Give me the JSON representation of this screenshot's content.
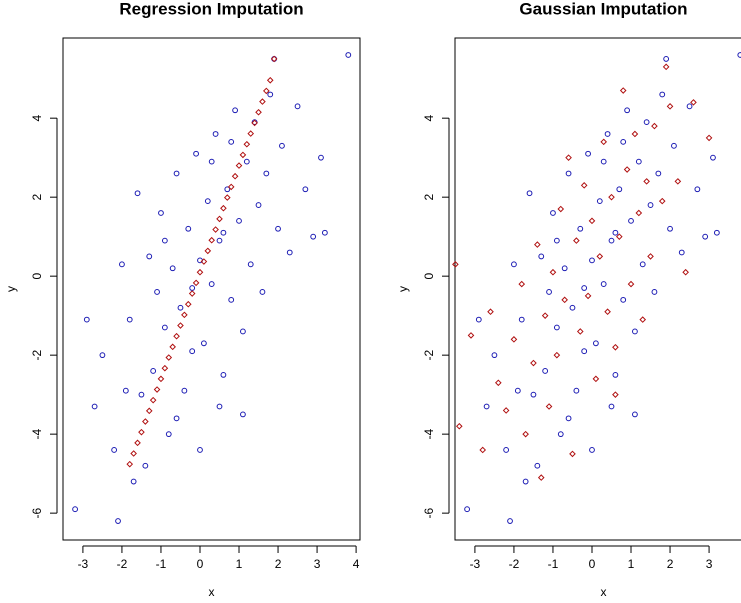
{
  "chart_data": [
    {
      "type": "scatter",
      "title": "Regression Imputation",
      "xlabel": "x",
      "ylabel": "y",
      "xlim": [
        -3.51,
        4.1
      ],
      "ylim": [
        -6.68,
        6.03
      ],
      "xticks": [
        -3,
        -2,
        -1,
        0,
        1,
        2,
        3,
        4
      ],
      "yticks": [
        -6,
        -4,
        -2,
        0,
        2,
        4
      ],
      "series": [
        {
          "color": "#1c1cb4",
          "marker": "circle",
          "x": [
            -3.2,
            -2.1,
            3.8,
            1.9,
            3.1,
            3.2,
            -2.9,
            -2.7,
            -2.5,
            -2.2,
            -1.8,
            -1.6,
            -1.5,
            -1.3,
            -1.2,
            -1.0,
            -0.9,
            -0.8,
            -0.7,
            -0.6,
            -0.5,
            -0.4,
            -0.3,
            -0.2,
            -0.1,
            0.0,
            0.1,
            0.2,
            0.3,
            0.4,
            0.5,
            0.6,
            0.7,
            0.8,
            0.9,
            1.0,
            1.1,
            1.2,
            1.3,
            1.4,
            1.5,
            1.6,
            1.7,
            1.8,
            2.0,
            2.1,
            2.3,
            2.5,
            2.7,
            -2.0,
            -1.9,
            -1.4,
            -1.1,
            -0.6,
            0.0,
            0.3,
            -0.2,
            0.6,
            -0.9,
            1.1,
            0.5,
            -1.7,
            2.9,
            0.8
          ],
          "y": [
            -5.9,
            -6.2,
            5.6,
            5.5,
            3.0,
            1.1,
            -1.1,
            -3.3,
            -2.0,
            -4.4,
            -1.1,
            2.1,
            -3.0,
            0.5,
            -2.4,
            1.6,
            -1.3,
            -4.0,
            0.2,
            2.6,
            -0.8,
            -2.9,
            1.2,
            -0.3,
            3.1,
            0.4,
            -1.7,
            1.9,
            -0.2,
            3.6,
            0.9,
            -2.5,
            2.2,
            -0.6,
            4.2,
            1.4,
            -1.4,
            2.9,
            0.3,
            3.9,
            1.8,
            -0.4,
            2.6,
            4.6,
            1.2,
            3.3,
            0.6,
            4.3,
            2.2,
            0.3,
            -2.9,
            -4.8,
            -0.4,
            -3.6,
            -4.4,
            2.9,
            -1.9,
            1.1,
            0.9,
            -3.5,
            -3.3,
            -5.2,
            1.0,
            3.4
          ]
        },
        {
          "color": "#b01010",
          "marker": "diamond",
          "x": [
            -1.8,
            -1.7,
            -1.6,
            -1.5,
            -1.4,
            -1.3,
            -1.2,
            -1.1,
            -1.0,
            -0.9,
            -0.8,
            -0.7,
            -0.6,
            -0.5,
            -0.4,
            -0.3,
            -0.2,
            -0.1,
            0.0,
            0.1,
            0.2,
            0.3,
            0.4,
            0.5,
            0.6,
            0.7,
            0.8,
            0.9,
            1.0,
            1.1,
            1.2,
            1.3,
            1.4,
            1.5,
            1.6,
            1.7,
            1.8,
            1.9
          ],
          "y": [
            -4.76,
            -4.49,
            -4.22,
            -3.95,
            -3.68,
            -3.41,
            -3.14,
            -2.87,
            -2.6,
            -2.33,
            -2.06,
            -1.79,
            -1.52,
            -1.25,
            -0.98,
            -0.71,
            -0.44,
            -0.17,
            0.1,
            0.37,
            0.64,
            0.91,
            1.18,
            1.45,
            1.72,
            1.99,
            2.26,
            2.53,
            2.8,
            3.07,
            3.34,
            3.61,
            3.88,
            4.15,
            4.42,
            4.69,
            4.96,
            5.5
          ]
        }
      ]
    },
    {
      "type": "scatter",
      "title": "Gaussian Imputation",
      "xlabel": "x",
      "ylabel": "y",
      "xlim": [
        -3.51,
        4.1
      ],
      "ylim": [
        -6.68,
        6.03
      ],
      "xticks": [
        -3,
        -2,
        -1,
        0,
        1,
        2,
        3
      ],
      "yticks": [
        -6,
        -4,
        -2,
        0,
        2,
        4
      ],
      "series": [
        {
          "color": "#1c1cb4",
          "marker": "circle",
          "x": [
            -3.2,
            -2.1,
            3.8,
            1.9,
            3.1,
            3.2,
            -2.9,
            -2.7,
            -2.5,
            -2.2,
            -1.8,
            -1.6,
            -1.5,
            -1.3,
            -1.2,
            -1.0,
            -0.9,
            -0.8,
            -0.7,
            -0.6,
            -0.5,
            -0.4,
            -0.3,
            -0.2,
            -0.1,
            0.0,
            0.1,
            0.2,
            0.3,
            0.4,
            0.5,
            0.6,
            0.7,
            0.8,
            0.9,
            1.0,
            1.1,
            1.2,
            1.3,
            1.4,
            1.5,
            1.6,
            1.7,
            1.8,
            2.0,
            2.1,
            2.3,
            2.5,
            2.7,
            -2.0,
            -1.9,
            -1.4,
            -1.1,
            -0.6,
            0.0,
            0.3,
            -0.2,
            0.6,
            -0.9,
            1.1,
            0.5,
            -1.7,
            2.9,
            0.8
          ],
          "y": [
            -5.9,
            -6.2,
            5.6,
            5.5,
            3.0,
            1.1,
            -1.1,
            -3.3,
            -2.0,
            -4.4,
            -1.1,
            2.1,
            -3.0,
            0.5,
            -2.4,
            1.6,
            -1.3,
            -4.0,
            0.2,
            2.6,
            -0.8,
            -2.9,
            1.2,
            -0.3,
            3.1,
            0.4,
            -1.7,
            1.9,
            -0.2,
            3.6,
            0.9,
            -2.5,
            2.2,
            -0.6,
            4.2,
            1.4,
            -1.4,
            2.9,
            0.3,
            3.9,
            1.8,
            -0.4,
            2.6,
            4.6,
            1.2,
            3.3,
            0.6,
            4.3,
            2.2,
            0.3,
            -2.9,
            -4.8,
            -0.4,
            -3.6,
            -4.4,
            2.9,
            -1.9,
            1.1,
            0.9,
            -3.5,
            -3.3,
            -5.2,
            1.0,
            3.4
          ]
        },
        {
          "color": "#b01010",
          "marker": "diamond",
          "x": [
            -3.4,
            -3.1,
            -2.8,
            -2.6,
            -2.4,
            -2.2,
            -2.0,
            -1.8,
            -1.7,
            -1.5,
            -1.4,
            -1.2,
            -1.1,
            -1.0,
            -0.9,
            -0.8,
            -0.7,
            -0.5,
            -0.4,
            -0.3,
            -0.2,
            -0.1,
            0.0,
            0.1,
            0.2,
            0.3,
            0.4,
            0.5,
            0.6,
            0.7,
            0.8,
            0.9,
            1.0,
            1.1,
            1.2,
            1.3,
            1.4,
            1.5,
            1.6,
            1.8,
            2.0,
            2.2,
            2.4,
            2.6,
            3.0,
            -1.3,
            0.6,
            -0.6,
            1.9,
            -3.5
          ],
          "y": [
            -3.8,
            -1.5,
            -4.4,
            -0.9,
            -2.7,
            -3.4,
            -1.6,
            -0.2,
            -4.0,
            -2.2,
            0.8,
            -1.0,
            -3.3,
            0.1,
            -2.0,
            1.7,
            -0.6,
            -4.5,
            0.9,
            -1.4,
            2.3,
            -0.5,
            1.4,
            -2.6,
            0.5,
            3.4,
            -0.9,
            2.0,
            -1.8,
            1.0,
            4.7,
            2.7,
            -0.2,
            3.6,
            1.6,
            -1.1,
            2.4,
            0.5,
            3.8,
            1.9,
            4.3,
            2.4,
            0.1,
            4.4,
            3.5,
            -5.1,
            -3.0,
            3.0,
            5.3,
            0.3
          ]
        }
      ]
    }
  ]
}
